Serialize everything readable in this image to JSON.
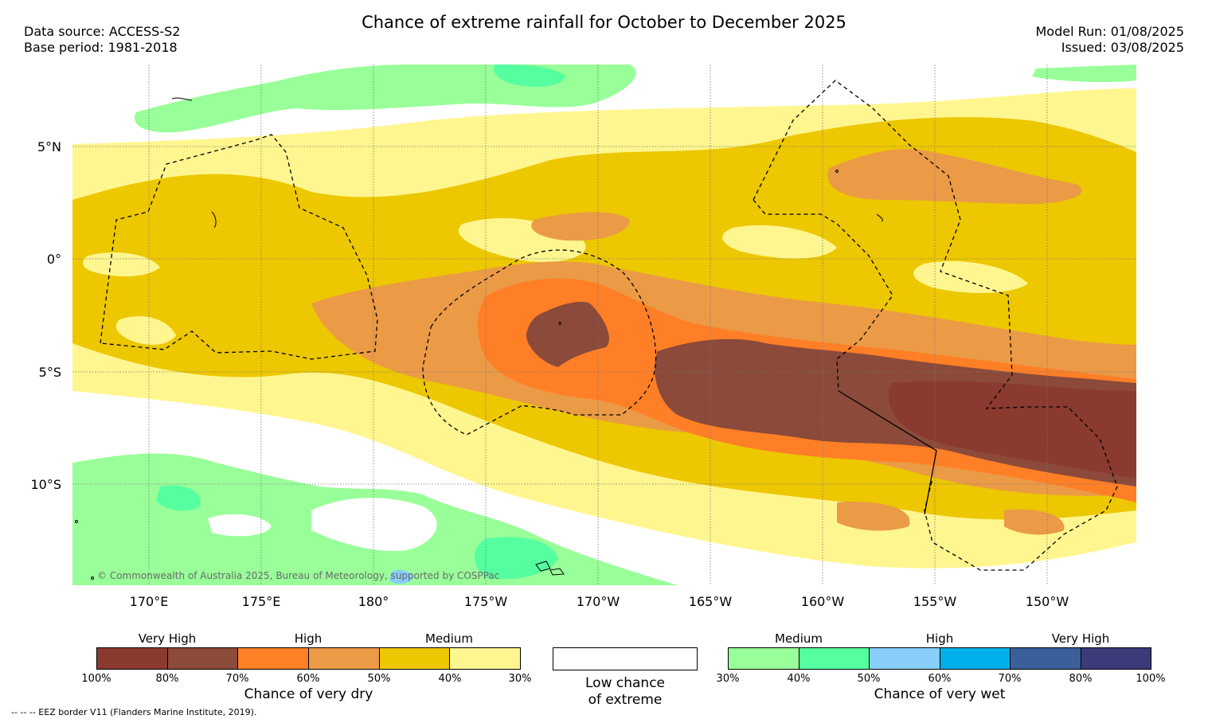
{
  "title": "Chance of extreme rainfall for October to December 2025",
  "source": {
    "data_source": "Data source: ACCESS-S2",
    "base_period": "Base period: 1981-2018"
  },
  "run": {
    "model_run": "Model Run: 01/08/2025",
    "issued": "Issued: 03/08/2025"
  },
  "map": {
    "lat_labels": [
      "5°N",
      "0°",
      "5°S",
      "10°S"
    ],
    "lon_labels": [
      "170°E",
      "175°E",
      "180°",
      "175°W",
      "170°W",
      "165°W",
      "160°W",
      "155°W",
      "150°W"
    ],
    "copyright": "© Commonwealth of Australia 2025, Bureau of Meteorology, supported by COSPPac"
  },
  "legend_dry": {
    "groups": [
      "Very High",
      "High",
      "Medium"
    ],
    "ticks": [
      "100%",
      "80%",
      "70%",
      "60%",
      "50%",
      "40%",
      "30%"
    ],
    "colors": [
      "#8b3a30",
      "#8b4a3a",
      "#ff7f27",
      "#eb9a46",
      "#edc700",
      "#fff68f"
    ],
    "title": "Chance of very dry"
  },
  "legend_low": {
    "line1": "Low chance",
    "line2": "of extreme"
  },
  "legend_wet": {
    "groups": [
      "Medium",
      "High",
      "Very High"
    ],
    "ticks": [
      "30%",
      "40%",
      "50%",
      "60%",
      "70%",
      "80%",
      "100%"
    ],
    "colors": [
      "#99ff99",
      "#55ffa0",
      "#87cefa",
      "#00b0eb",
      "#3a5f9a",
      "#3d3a7a"
    ],
    "title": "Chance of very wet"
  },
  "footnote": "-- -- -- EEZ border V11 (Flanders Marine Institute, 2019)."
}
